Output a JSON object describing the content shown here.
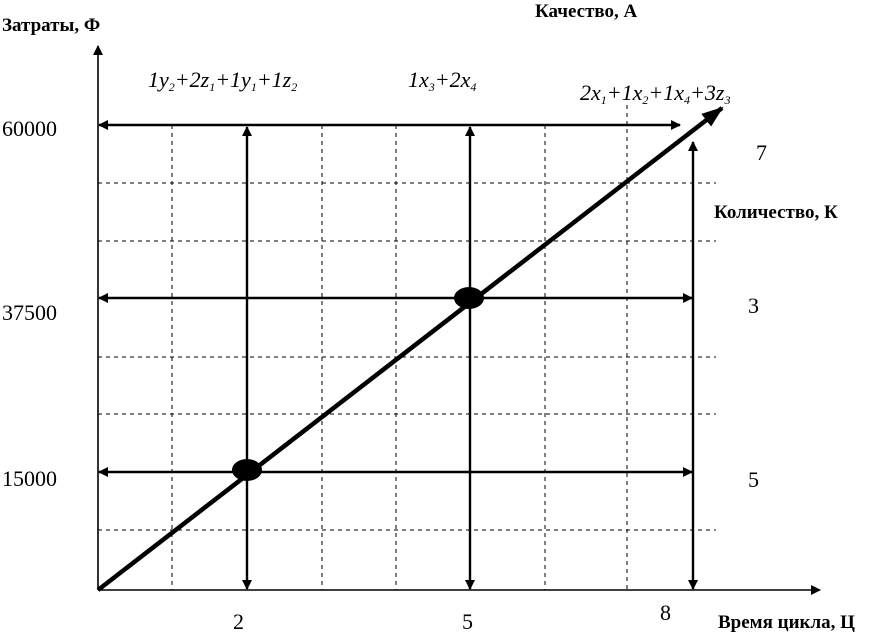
{
  "axes": {
    "y_title": "Затраты, Ф",
    "x_title": "Время цикла, Ц",
    "diagonal_title": "Качество, А",
    "right_title": "Количество, К"
  },
  "y_ticks": [
    "60000",
    "37500",
    "15000"
  ],
  "x_ticks": [
    "2",
    "5",
    "8"
  ],
  "right_values": [
    "7",
    "3",
    "5"
  ],
  "formulas": {
    "f1": [
      {
        "t": "1y",
        "s": false
      },
      {
        "t": "2",
        "s": true
      },
      {
        "t": "+2z",
        "s": false
      },
      {
        "t": "1",
        "s": true
      },
      {
        "t": "+1y",
        "s": false
      },
      {
        "t": "1",
        "s": true
      },
      {
        "t": "+1z",
        "s": false
      },
      {
        "t": "2",
        "s": true
      }
    ],
    "f2": [
      {
        "t": "1x",
        "s": false
      },
      {
        "t": "3",
        "s": true
      },
      {
        "t": "+2x",
        "s": false
      },
      {
        "t": "4",
        "s": true
      }
    ],
    "f3": [
      {
        "t": "2x",
        "s": false
      },
      {
        "t": "1",
        "s": true
      },
      {
        "t": "+1x",
        "s": false
      },
      {
        "t": "2",
        "s": true
      },
      {
        "t": "+1x",
        "s": false
      },
      {
        "t": "4",
        "s": true
      },
      {
        "t": "+3z",
        "s": false
      },
      {
        "t": "3",
        "s": true
      }
    ]
  },
  "points": [
    {
      "x": 2,
      "y": 15000
    },
    {
      "x": 5,
      "y": 37500
    }
  ],
  "colors": {
    "ink": "#000000",
    "background": "#ffffff"
  }
}
